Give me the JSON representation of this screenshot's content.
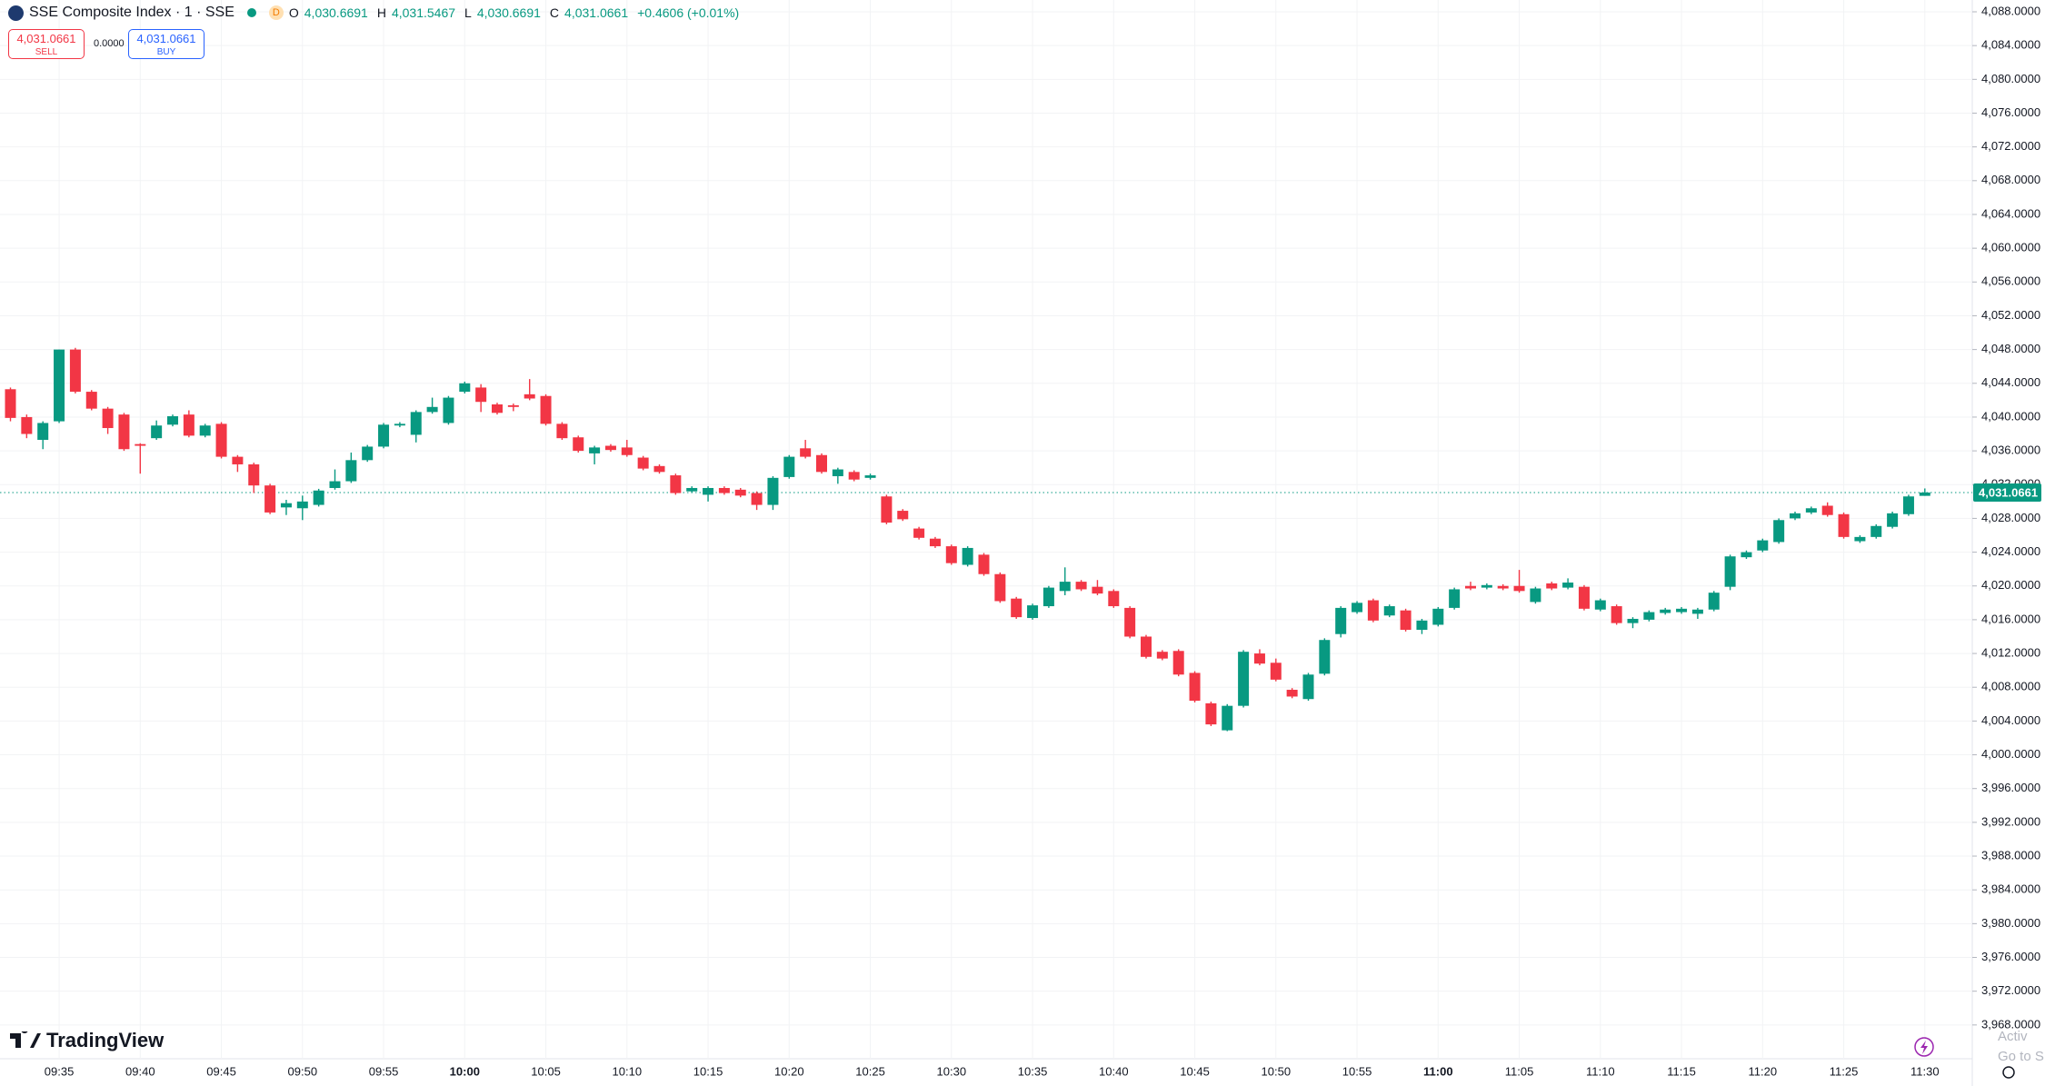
{
  "header": {
    "symbol": "SSE Composite Index · 1 · SSE",
    "interval_badge": "D",
    "ohlc": [
      {
        "key": "O",
        "value": "4,030.6691"
      },
      {
        "key": "H",
        "value": "4,031.5467"
      },
      {
        "key": "L",
        "value": "4,030.6691"
      },
      {
        "key": "C",
        "value": "4,031.0661"
      }
    ],
    "change": "+0.4606 (+0.01%)"
  },
  "trade": {
    "sell_price": "4,031.0661",
    "sell_label": "SELL",
    "spread": "0.0000",
    "buy_price": "4,031.0661",
    "buy_label": "BUY"
  },
  "branding": "TradingView",
  "watermark": [
    "Activ",
    "Go to S"
  ],
  "chart_data": {
    "type": "candlestick",
    "up_color": "#089981",
    "down_color": "#f23645",
    "grid": true,
    "ylim": [
      3964,
      4089.4
    ],
    "yticks": [
      {
        "value": 4088,
        "label": "4,088.0000"
      },
      {
        "value": 4084,
        "label": "4,084.0000"
      },
      {
        "value": 4080,
        "label": "4,080.0000"
      },
      {
        "value": 4076,
        "label": "4,076.0000"
      },
      {
        "value": 4072,
        "label": "4,072.0000"
      },
      {
        "value": 4068,
        "label": "4,068.0000"
      },
      {
        "value": 4064,
        "label": "4,064.0000"
      },
      {
        "value": 4060,
        "label": "4,060.0000"
      },
      {
        "value": 4056,
        "label": "4,056.0000"
      },
      {
        "value": 4052,
        "label": "4,052.0000"
      },
      {
        "value": 4048,
        "label": "4,048.0000"
      },
      {
        "value": 4044,
        "label": "4,044.0000"
      },
      {
        "value": 4040,
        "label": "4,040.0000"
      },
      {
        "value": 4036,
        "label": "4,036.0000"
      },
      {
        "value": 4032,
        "label": "4,032.0000"
      },
      {
        "value": 4028,
        "label": "4,028.0000"
      },
      {
        "value": 4024,
        "label": "4,024.0000"
      },
      {
        "value": 4020,
        "label": "4,020.0000"
      },
      {
        "value": 4016,
        "label": "4,016.0000"
      },
      {
        "value": 4012,
        "label": "4,012.0000"
      },
      {
        "value": 4008,
        "label": "4,008.0000"
      },
      {
        "value": 4004,
        "label": "4,004.0000"
      },
      {
        "value": 4000,
        "label": "4,000.0000"
      },
      {
        "value": 3996,
        "label": "3,996.0000"
      },
      {
        "value": 3992,
        "label": "3,992.0000"
      },
      {
        "value": 3988,
        "label": "3,988.0000"
      },
      {
        "value": 3984,
        "label": "3,984.0000"
      },
      {
        "value": 3980,
        "label": "3,980.0000"
      },
      {
        "value": 3976,
        "label": "3,976.0000"
      },
      {
        "value": 3972,
        "label": "3,972.0000"
      },
      {
        "value": 3968,
        "label": "3,968.0000"
      }
    ],
    "last_price": {
      "value": 4031.0661,
      "label": "4,031.0661"
    },
    "categories": [
      null,
      null,
      null,
      "09:35",
      null,
      null,
      null,
      null,
      "09:40",
      null,
      null,
      null,
      null,
      "09:45",
      null,
      null,
      null,
      null,
      "09:50",
      null,
      null,
      null,
      null,
      "09:55",
      null,
      null,
      null,
      null,
      "10:00",
      null,
      null,
      null,
      null,
      "10:05",
      null,
      null,
      null,
      null,
      "10:10",
      null,
      null,
      null,
      null,
      "10:15",
      null,
      null,
      null,
      null,
      "10:20",
      null,
      null,
      null,
      null,
      "10:25",
      null,
      null,
      null,
      null,
      "10:30",
      null,
      null,
      null,
      null,
      "10:35",
      null,
      null,
      null,
      null,
      "10:40",
      null,
      null,
      null,
      null,
      "10:45",
      null,
      null,
      null,
      null,
      "10:50",
      null,
      null,
      null,
      null,
      "10:55",
      null,
      null,
      null,
      null,
      "11:00",
      null,
      null,
      null,
      null,
      "11:05",
      null,
      null,
      null,
      null,
      "11:10",
      null,
      null,
      null,
      null,
      "11:15",
      null,
      null,
      null,
      null,
      "11:20",
      null,
      null,
      null,
      null,
      "11:25",
      null,
      null,
      null,
      null,
      "11:30"
    ],
    "candles": [
      [
        4043.3,
        4043.5,
        4039.5,
        4039.9
      ],
      [
        4040.0,
        4040.3,
        4037.5,
        4038.0
      ],
      [
        4037.3,
        4039.5,
        4036.2,
        4039.3
      ],
      [
        4039.5,
        4048.0,
        4039.3,
        4048.0
      ],
      [
        4048.0,
        4048.2,
        4042.8,
        4043.0
      ],
      [
        4043.0,
        4043.2,
        4040.8,
        4041.0
      ],
      [
        4041.0,
        4041.2,
        4038.0,
        4038.7
      ],
      [
        4040.3,
        4040.5,
        4036.0,
        4036.2
      ],
      [
        4036.8,
        4036.9,
        4033.3,
        4036.6
      ],
      [
        4037.5,
        4039.6,
        4037.3,
        4039.0
      ],
      [
        4039.1,
        4040.3,
        4038.9,
        4040.1
      ],
      [
        4040.3,
        4040.8,
        4037.6,
        4037.8
      ],
      [
        4037.8,
        4039.2,
        4037.6,
        4039.0
      ],
      [
        4039.2,
        4039.4,
        4035.1,
        4035.3
      ],
      [
        4035.3,
        4035.5,
        4033.5,
        4034.4
      ],
      [
        4034.4,
        4034.6,
        4031.0,
        4031.9
      ],
      [
        4031.9,
        4032.1,
        4028.5,
        4028.7
      ],
      [
        4029.3,
        4030.2,
        4028.4,
        4029.8
      ],
      [
        4029.2,
        4030.7,
        4027.8,
        4030.0
      ],
      [
        4029.6,
        4031.5,
        4029.4,
        4031.3
      ],
      [
        4031.6,
        4033.8,
        4031.4,
        4032.4
      ],
      [
        4032.4,
        4035.8,
        4032.2,
        4034.9
      ],
      [
        4034.9,
        4036.7,
        4034.7,
        4036.5
      ],
      [
        4036.5,
        4039.3,
        4036.3,
        4039.1
      ],
      [
        4039.0,
        4039.4,
        4038.8,
        4039.2
      ],
      [
        4037.9,
        4040.8,
        4037.0,
        4040.6
      ],
      [
        4040.6,
        4042.3,
        4040.4,
        4041.2
      ],
      [
        4039.3,
        4042.5,
        4039.1,
        4042.3
      ],
      [
        4043.0,
        4044.2,
        4042.8,
        4044.0
      ],
      [
        4043.5,
        4043.9,
        4040.6,
        4041.8
      ],
      [
        4041.5,
        4041.7,
        4040.3,
        4040.5
      ],
      [
        4041.4,
        4041.6,
        4040.7,
        4041.2
      ],
      [
        4042.7,
        4044.5,
        4042.0,
        4042.2
      ],
      [
        4042.5,
        4042.7,
        4039.0,
        4039.2
      ],
      [
        4039.2,
        4039.4,
        4037.3,
        4037.5
      ],
      [
        4037.6,
        4037.8,
        4035.8,
        4036.0
      ],
      [
        4035.7,
        4036.6,
        4034.4,
        4036.4
      ],
      [
        4036.6,
        4036.8,
        4035.9,
        4036.1
      ],
      [
        4036.4,
        4037.3,
        4035.3,
        4035.5
      ],
      [
        4035.2,
        4035.4,
        4033.7,
        4033.9
      ],
      [
        4034.2,
        4034.4,
        4033.3,
        4033.5
      ],
      [
        4033.1,
        4033.3,
        4030.8,
        4031.0
      ],
      [
        4031.2,
        4031.8,
        4031.0,
        4031.6
      ],
      [
        4030.8,
        4031.8,
        4030.0,
        4031.6
      ],
      [
        4031.6,
        4031.8,
        4030.8,
        4031.0
      ],
      [
        4031.4,
        4031.6,
        4030.5,
        4030.7
      ],
      [
        4031.0,
        4031.2,
        4029.0,
        4029.6
      ],
      [
        4029.6,
        4033.0,
        4029.0,
        4032.8
      ],
      [
        4032.9,
        4035.5,
        4032.7,
        4035.3
      ],
      [
        4036.3,
        4037.3,
        4035.1,
        4035.3
      ],
      [
        4035.5,
        4035.7,
        4033.3,
        4033.5
      ],
      [
        4033.0,
        4034.0,
        4032.1,
        4033.8
      ],
      [
        4033.5,
        4033.7,
        4032.4,
        4032.6
      ],
      [
        4032.8,
        4033.3,
        4032.6,
        4033.1
      ],
      [
        4030.6,
        4030.8,
        4027.3,
        4027.5
      ],
      [
        4028.9,
        4029.1,
        4027.7,
        4027.9
      ],
      [
        4026.8,
        4027.0,
        4025.5,
        4025.7
      ],
      [
        4025.6,
        4025.8,
        4024.5,
        4024.7
      ],
      [
        4024.7,
        4024.9,
        4022.5,
        4022.7
      ],
      [
        4022.5,
        4024.7,
        4022.3,
        4024.5
      ],
      [
        4023.7,
        4023.9,
        4021.2,
        4021.4
      ],
      [
        4021.4,
        4021.6,
        4018.0,
        4018.2
      ],
      [
        4018.5,
        4018.7,
        4016.1,
        4016.3
      ],
      [
        4016.2,
        4017.9,
        4016.0,
        4017.7
      ],
      [
        4017.6,
        4020.0,
        4017.4,
        4019.8
      ],
      [
        4019.4,
        4022.2,
        4018.9,
        4020.5
      ],
      [
        4020.5,
        4020.7,
        4019.4,
        4019.6
      ],
      [
        4019.9,
        4020.7,
        4018.9,
        4019.1
      ],
      [
        4019.4,
        4019.6,
        4017.4,
        4017.6
      ],
      [
        4017.4,
        4017.6,
        4013.8,
        4014.0
      ],
      [
        4014.0,
        4014.2,
        4011.4,
        4011.6
      ],
      [
        4012.2,
        4012.4,
        4011.2,
        4011.4
      ],
      [
        4012.3,
        4012.5,
        4009.3,
        4009.5
      ],
      [
        4009.7,
        4009.9,
        4006.2,
        4006.4
      ],
      [
        4006.1,
        4006.3,
        4003.4,
        4003.6
      ],
      [
        4002.9,
        4006.0,
        4002.8,
        4005.8
      ],
      [
        4005.8,
        4012.4,
        4005.6,
        4012.2
      ],
      [
        4012.0,
        4012.5,
        4010.6,
        4010.8
      ],
      [
        4010.9,
        4011.4,
        4008.7,
        4008.9
      ],
      [
        4007.7,
        4007.9,
        4006.7,
        4006.9
      ],
      [
        4006.6,
        4009.7,
        4006.4,
        4009.5
      ],
      [
        4009.6,
        4013.8,
        4009.4,
        4013.6
      ],
      [
        4014.3,
        4017.6,
        4013.9,
        4017.4
      ],
      [
        4016.9,
        4018.2,
        4016.7,
        4018.0
      ],
      [
        4018.3,
        4018.5,
        4015.7,
        4015.9
      ],
      [
        4016.5,
        4017.8,
        4016.3,
        4017.6
      ],
      [
        4017.1,
        4017.3,
        4014.6,
        4014.8
      ],
      [
        4014.8,
        4016.1,
        4014.3,
        4015.9
      ],
      [
        4015.4,
        4017.5,
        4015.2,
        4017.3
      ],
      [
        4017.4,
        4019.8,
        4017.2,
        4019.6
      ],
      [
        4020.0,
        4020.5,
        4019.5,
        4019.7
      ],
      [
        4019.8,
        4020.3,
        4019.6,
        4020.1
      ],
      [
        4020.0,
        4020.2,
        4019.5,
        4019.7
      ],
      [
        4020.0,
        4021.9,
        4019.2,
        4019.4
      ],
      [
        4018.1,
        4019.9,
        4017.9,
        4019.7
      ],
      [
        4020.3,
        4020.5,
        4019.5,
        4019.7
      ],
      [
        4019.8,
        4020.9,
        4019.6,
        4020.4
      ],
      [
        4019.9,
        4020.1,
        4017.1,
        4017.3
      ],
      [
        4017.2,
        4018.5,
        4017.0,
        4018.3
      ],
      [
        4017.6,
        4017.8,
        4015.4,
        4015.6
      ],
      [
        4015.6,
        4016.3,
        4015.0,
        4016.1
      ],
      [
        4016.0,
        4017.1,
        4015.8,
        4016.9
      ],
      [
        4016.8,
        4017.4,
        4016.6,
        4017.2
      ],
      [
        4016.9,
        4017.5,
        4016.7,
        4017.3
      ],
      [
        4016.7,
        4017.4,
        4016.1,
        4017.2
      ],
      [
        4017.2,
        4019.4,
        4017.0,
        4019.2
      ],
      [
        4019.9,
        4023.7,
        4019.5,
        4023.5
      ],
      [
        4023.4,
        4024.2,
        4023.2,
        4024.0
      ],
      [
        4024.2,
        4025.6,
        4024.0,
        4025.4
      ],
      [
        4025.2,
        4028.0,
        4025.0,
        4027.8
      ],
      [
        4028.0,
        4028.8,
        4027.8,
        4028.6
      ],
      [
        4028.7,
        4029.4,
        4028.5,
        4029.2
      ],
      [
        4029.5,
        4029.9,
        4028.2,
        4028.4
      ],
      [
        4028.5,
        4028.7,
        4025.6,
        4025.8
      ],
      [
        4025.3,
        4026.0,
        4025.1,
        4025.8
      ],
      [
        4025.8,
        4027.3,
        4025.6,
        4027.1
      ],
      [
        4027.0,
        4028.8,
        4026.8,
        4028.6
      ],
      [
        4028.5,
        4030.8,
        4028.3,
        4030.6
      ],
      [
        4030.6691,
        4031.5467,
        4030.6691,
        4031.0661
      ]
    ]
  }
}
